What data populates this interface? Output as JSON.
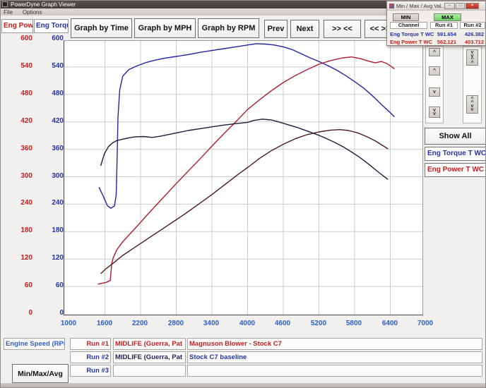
{
  "window": {
    "title": "PowerDyne Graph Viewer",
    "menu": [
      "File",
      "Options"
    ]
  },
  "toolbar": {
    "axis_headers": [
      {
        "label": "Eng Power",
        "color": "#c22020"
      },
      {
        "label": "Eng Torque",
        "color": "#2233aa"
      }
    ],
    "buttons": [
      "Graph by Time",
      "Graph by MPH",
      "Graph by RPM",
      "Prev",
      "Next",
      ">> <<",
      "<< >>"
    ]
  },
  "popup": {
    "title": "Min / Max / Avg Val...",
    "window_buttons": {
      "minimize": "–",
      "maximize": "□",
      "close": "×"
    },
    "min_label": "MIN",
    "max_label": "MAX",
    "columns": [
      "Channel",
      "Run #1",
      "Run #2"
    ],
    "rows": [
      {
        "channel": "Eng Torque T WC",
        "run1": "591.654",
        "run2": "426.382",
        "color": "#2233aa"
      },
      {
        "channel": "Eng Power T WC",
        "run1": "562.121",
        "run2": "403.712",
        "color": "#c22020"
      }
    ]
  },
  "side_panel": {
    "controls": [
      {
        "glyph": "^"
      },
      {
        "glyph": "^"
      },
      {
        "glyph": "v"
      },
      {
        "glyph": "v\nv"
      },
      {
        "glyph": "v\nv\n^\n^"
      },
      {
        "glyph": "^\n^\nv\nv"
      }
    ],
    "show_all": "Show All",
    "legend": [
      {
        "label": "Eng Torque T WC",
        "color": "#2233aa"
      },
      {
        "label": "Eng Power T WC",
        "color": "#c22020"
      }
    ]
  },
  "bottom": {
    "channel_label": "Engine Speed (RPM)",
    "minmax_button": "Min/Max/Avg",
    "runs": [
      {
        "label": "Run #1",
        "label_color": "#c22020",
        "name": "MIDLIFE (Guerra, Pat",
        "name_color": "#c22020",
        "comment": "Magnuson Blower - Stock C7",
        "comment_color": "#c22020"
      },
      {
        "label": "Run #2",
        "label_color": "#2233aa",
        "name": "MIDLIFE (Guerra, Pat",
        "name_color": "#222255",
        "comment": "Stock C7 baseline",
        "comment_color": "#2233aa"
      },
      {
        "label": "Run #3",
        "label_color": "#2233aa",
        "name": "",
        "name_color": "#222255",
        "comment": "",
        "comment_color": "#2233aa"
      }
    ]
  },
  "chart_data": {
    "type": "line",
    "title": "",
    "xlabel": "Engine Speed (RPM)",
    "ylabel_left": "Eng Power",
    "ylabel_right": "Eng Torque",
    "xlim": [
      1000,
      7900
    ],
    "ylim": [
      0,
      600
    ],
    "grid": true,
    "x_ticks": [
      1000,
      1600,
      2200,
      2800,
      3400,
      4000,
      4600,
      5200,
      5800,
      6400,
      7000
    ],
    "y_ticks": [
      600,
      540,
      480,
      420,
      360,
      300,
      240,
      180,
      120,
      60,
      0
    ],
    "series": [
      {
        "name": "Run #1 Eng Torque T WC",
        "color": "#2323a5",
        "x": [
          1500,
          1570,
          1640,
          1700,
          1760,
          1790,
          1805,
          1820,
          1850,
          1900,
          2000,
          2150,
          2300,
          2450,
          2600,
          2800,
          3000,
          3200,
          3400,
          3600,
          3800,
          4000,
          4150,
          4300,
          4450,
          4600,
          4750,
          4900,
          5050,
          5200,
          5350,
          5500,
          5650,
          5800,
          5950,
          6100,
          6250,
          6400,
          6470
        ],
        "y": [
          277,
          258,
          237,
          231,
          236,
          260,
          340,
          430,
          490,
          520,
          534,
          543,
          550,
          555,
          559,
          563,
          567,
          572,
          576,
          580,
          584,
          588,
          591,
          590,
          588,
          584,
          578,
          569,
          560,
          552,
          543,
          533,
          521,
          508,
          494,
          477,
          458,
          440,
          431
        ]
      },
      {
        "name": "Run #1 Eng Power T WC",
        "color": "#b01c2e",
        "x": [
          1480,
          1550,
          1620,
          1690,
          1715,
          1740,
          1800,
          1900,
          2000,
          2150,
          2300,
          2450,
          2600,
          2800,
          3000,
          3200,
          3400,
          3600,
          3800,
          4000,
          4200,
          4400,
          4600,
          4800,
          5000,
          5200,
          5400,
          5600,
          5750,
          5900,
          6050,
          6150,
          6250,
          6350,
          6470
        ],
        "y": [
          65,
          67,
          69,
          73,
          110,
          123,
          140,
          158,
          172,
          193,
          215,
          236,
          257,
          285,
          312,
          339,
          367,
          394,
          420,
          447,
          468,
          488,
          506,
          521,
          534,
          546,
          554,
          560,
          562,
          558,
          552,
          549,
          552,
          547,
          536
        ]
      },
      {
        "name": "Run #2 Eng Torque T WC",
        "color": "#1c1c3e",
        "x": [
          1530,
          1590,
          1660,
          1730,
          1800,
          1900,
          2000,
          2100,
          2250,
          2400,
          2550,
          2700,
          2850,
          3000,
          3200,
          3400,
          3600,
          3800,
          4000,
          4100,
          4250,
          4400,
          4550,
          4700,
          4850,
          5000,
          5150,
          5300,
          5450,
          5600,
          5750,
          5900,
          6050,
          6200,
          6360
        ],
        "y": [
          324,
          350,
          366,
          374,
          379,
          382,
          385,
          387,
          388,
          386,
          389,
          393,
          397,
          401,
          405,
          409,
          413,
          416,
          419,
          423,
          426,
          424,
          419,
          413,
          407,
          400,
          393,
          385,
          376,
          366,
          354,
          341,
          326,
          310,
          294
        ]
      },
      {
        "name": "Run #2 Eng Power T WC",
        "color": "#4a1a1e",
        "x": [
          1530,
          1620,
          1750,
          1900,
          2050,
          2200,
          2350,
          2500,
          2650,
          2800,
          2950,
          3100,
          3250,
          3400,
          3550,
          3700,
          3850,
          4000,
          4200,
          4400,
          4600,
          4800,
          5000,
          5200,
          5400,
          5550,
          5700,
          5850,
          6000,
          6150,
          6360
        ],
        "y": [
          88,
          99,
          112,
          128,
          141,
          154,
          167,
          180,
          193,
          206,
          219,
          233,
          247,
          261,
          276,
          291,
          306,
          320,
          340,
          357,
          371,
          383,
          392,
          398,
          402,
          403,
          401,
          396,
          388,
          378,
          361
        ]
      }
    ]
  }
}
